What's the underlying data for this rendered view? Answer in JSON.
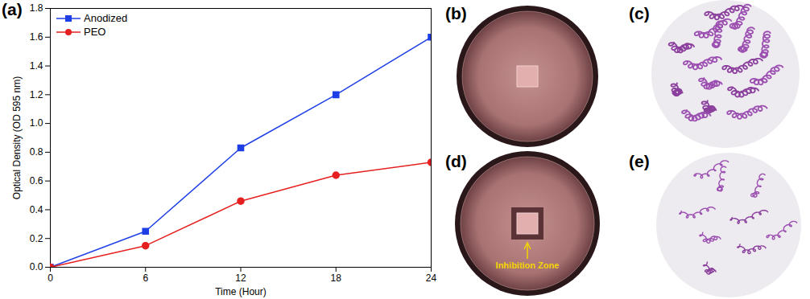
{
  "chart_data": {
    "type": "line",
    "annotations": [
      "(a)"
    ],
    "x_label": "Time (Hour)",
    "y_label": "Optical Density (OD 595 nm)",
    "x": [
      0,
      6,
      12,
      18,
      24
    ],
    "series": [
      {
        "name": "Anodized",
        "color": "#1f3fe6",
        "marker": "square",
        "values": [
          0,
          0.25,
          0.83,
          1.2,
          1.6
        ]
      },
      {
        "name": "PEO",
        "color": "#e62020",
        "marker": "circle",
        "values": [
          0,
          0.15,
          0.46,
          0.64,
          0.73
        ]
      }
    ],
    "xlim": [
      0,
      24
    ],
    "xticks": [
      0,
      6,
      12,
      18,
      24
    ],
    "ylim": [
      0,
      1.8
    ],
    "yticks": [
      {
        "value": 0,
        "label": "0.0"
      },
      0.2,
      0.4,
      0.6,
      0.8,
      {
        "value": 1,
        "label": "1.0"
      },
      1.2,
      1.4,
      1.6,
      1.8
    ],
    "grid": false,
    "legend": "upper left"
  },
  "photo_panels": [
    {
      "label": "(b)"
    },
    {
      "label": "(c)"
    },
    {
      "label": "(d)",
      "annotation": "Inhibition Zone"
    },
    {
      "label": "(e)"
    }
  ]
}
